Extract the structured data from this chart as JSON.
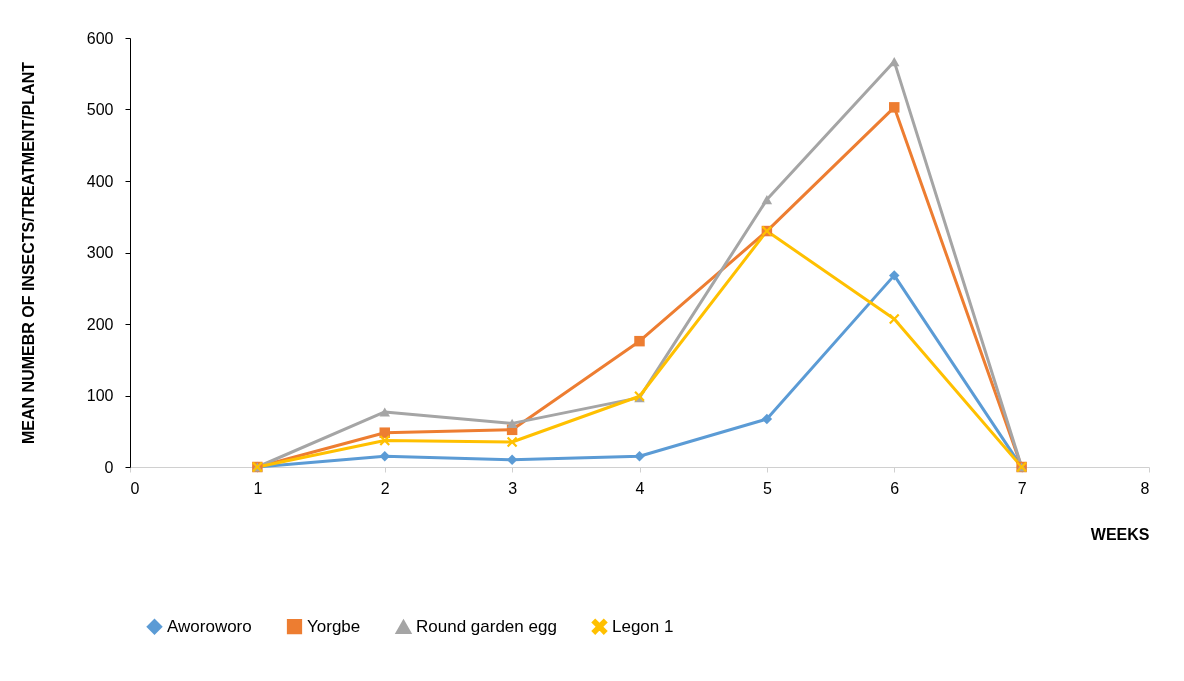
{
  "chart_data": {
    "type": "line",
    "xlabel": "WEEKS",
    "ylabel": "MEAN NUMEBR OF INSECTS/TREATMENT/PLANT",
    "x": [
      1,
      2,
      3,
      4,
      5,
      6,
      7
    ],
    "series": [
      {
        "name": "Aworoworo",
        "color": "#5b9bd5",
        "marker": "diamond",
        "values": [
          0,
          15,
          10,
          15,
          67,
          268,
          0
        ]
      },
      {
        "name": "Yorgbe",
        "color": "#ed7d31",
        "marker": "square",
        "values": [
          0,
          48,
          52,
          176,
          330,
          503,
          0
        ]
      },
      {
        "name": "Round garden egg",
        "color": "#a5a5a5",
        "marker": "triangle",
        "values": [
          0,
          77,
          61,
          97,
          374,
          567,
          0
        ]
      },
      {
        "name": "Legon 1",
        "color": "#ffc000",
        "marker": "cross",
        "values": [
          0,
          37,
          35,
          99,
          330,
          207,
          0
        ]
      }
    ],
    "xlim": [
      0,
      8
    ],
    "xticks": [
      0,
      1,
      2,
      3,
      4,
      5,
      6,
      7,
      8
    ],
    "ylim": [
      0,
      600
    ],
    "yticks": [
      0,
      100,
      200,
      300,
      400,
      500,
      600
    ],
    "grid": false,
    "legend": "bottom"
  }
}
